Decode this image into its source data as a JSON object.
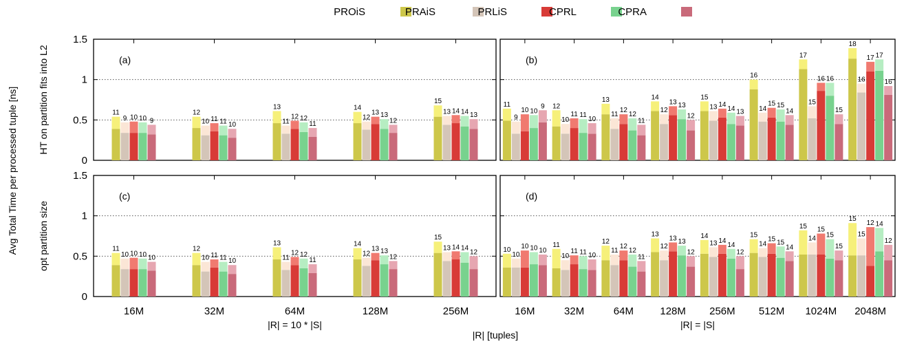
{
  "chart_data": {
    "type": "bar",
    "stacked": true,
    "ylabel_outer": "Avg Total Time per processed tuple [ns]",
    "xlabel_common": "|R| [tuples]",
    "legend_position": "top",
    "legend": [
      "PROiS",
      "PRAiS",
      "PRLiS",
      "CPRL",
      "CPRA"
    ],
    "series_colors": {
      "PROiS": {
        "base": "#cdc74a",
        "top": "#f6f07a"
      },
      "PRAiS": {
        "base": "#d4c5b8",
        "top": "#fbe6d6"
      },
      "PRLiS": {
        "base": "#d83b37",
        "top": "#f07a70"
      },
      "CPRL": {
        "base": "#78d28e",
        "top": "#b6edc2"
      },
      "CPRA": {
        "base": "#c96a7a",
        "top": "#e6a6b1"
      }
    },
    "rows": [
      {
        "ylabel": "HT on partition fits into L2"
      },
      {
        "ylabel": "opt partition size"
      }
    ],
    "columns": [
      {
        "xlabel": "|R| = 10 * |S|",
        "categories": [
          "16M",
          "32M",
          "64M",
          "128M",
          "256M"
        ]
      },
      {
        "xlabel": "|R| = |S|",
        "categories": [
          "16M",
          "32M",
          "64M",
          "128M",
          "256M",
          "512M",
          "1024M",
          "2048M"
        ]
      }
    ],
    "ylim": [
      0,
      1.5
    ],
    "yticks": [
      0,
      0.5,
      1,
      1.5
    ],
    "ytick_labels": [
      "0",
      "0.5",
      "1",
      "1.5"
    ],
    "grid_values": [
      0.5,
      1
    ],
    "panels": [
      {
        "label": "(a)",
        "bars": [
          [
            {
              "base": 0.39,
              "total": 0.54,
              "label": "11"
            },
            {
              "base": 0.34,
              "total": 0.47,
              "label": "9"
            },
            {
              "base": 0.34,
              "total": 0.48,
              "label": "10"
            },
            {
              "base": 0.34,
              "total": 0.47,
              "label": "10"
            },
            {
              "base": 0.32,
              "total": 0.44,
              "label": "9"
            }
          ],
          [
            {
              "base": 0.4,
              "total": 0.54,
              "label": "12"
            },
            {
              "base": 0.31,
              "total": 0.43,
              "label": "10"
            },
            {
              "base": 0.36,
              "total": 0.46,
              "label": "11"
            },
            {
              "base": 0.31,
              "total": 0.43,
              "label": "11"
            },
            {
              "base": 0.28,
              "total": 0.39,
              "label": "10"
            }
          ],
          [
            {
              "base": 0.46,
              "total": 0.61,
              "label": "13"
            },
            {
              "base": 0.33,
              "total": 0.43,
              "label": "11"
            },
            {
              "base": 0.39,
              "total": 0.49,
              "label": "12"
            },
            {
              "base": 0.35,
              "total": 0.47,
              "label": "12"
            },
            {
              "base": 0.29,
              "total": 0.4,
              "label": "11"
            }
          ],
          [
            {
              "base": 0.46,
              "total": 0.6,
              "label": "14"
            },
            {
              "base": 0.38,
              "total": 0.48,
              "label": "12"
            },
            {
              "base": 0.45,
              "total": 0.54,
              "label": "13"
            },
            {
              "base": 0.39,
              "total": 0.51,
              "label": "13"
            },
            {
              "base": 0.34,
              "total": 0.44,
              "label": "12"
            }
          ],
          [
            {
              "base": 0.54,
              "total": 0.68,
              "label": "15"
            },
            {
              "base": 0.44,
              "total": 0.55,
              "label": "13"
            },
            {
              "base": 0.46,
              "total": 0.56,
              "label": "14"
            },
            {
              "base": 0.42,
              "total": 0.55,
              "label": "14"
            },
            {
              "base": 0.39,
              "total": 0.51,
              "label": "13"
            }
          ]
        ]
      },
      {
        "label": "(b)",
        "bars": [
          [
            {
              "base": 0.49,
              "total": 0.64,
              "label": "11"
            },
            {
              "base": 0.33,
              "total": 0.48,
              "label": "9"
            },
            {
              "base": 0.36,
              "total": 0.57,
              "label": "10"
            },
            {
              "base": 0.4,
              "total": 0.56,
              "label": "10"
            },
            {
              "base": 0.47,
              "total": 0.62,
              "label": "9"
            }
          ],
          [
            {
              "base": 0.42,
              "total": 0.62,
              "label": "12"
            },
            {
              "base": 0.33,
              "total": 0.45,
              "label": "10"
            },
            {
              "base": 0.4,
              "total": 0.52,
              "label": "11"
            },
            {
              "base": 0.34,
              "total": 0.51,
              "label": "11"
            },
            {
              "base": 0.33,
              "total": 0.46,
              "label": "10"
            }
          ],
          [
            {
              "base": 0.57,
              "total": 0.7,
              "label": "13"
            },
            {
              "base": 0.39,
              "total": 0.52,
              "label": "11"
            },
            {
              "base": 0.45,
              "total": 0.57,
              "label": "12"
            },
            {
              "base": 0.37,
              "total": 0.52,
              "label": "12"
            },
            {
              "base": 0.31,
              "total": 0.44,
              "label": "11"
            }
          ],
          [
            {
              "base": 0.61,
              "total": 0.73,
              "label": "14"
            },
            {
              "base": 0.45,
              "total": 0.57,
              "label": "12"
            },
            {
              "base": 0.56,
              "total": 0.67,
              "label": "13"
            },
            {
              "base": 0.51,
              "total": 0.63,
              "label": "13"
            },
            {
              "base": 0.37,
              "total": 0.5,
              "label": "12"
            }
          ],
          [
            {
              "base": 0.61,
              "total": 0.73,
              "label": "15"
            },
            {
              "base": 0.49,
              "total": 0.61,
              "label": "13"
            },
            {
              "base": 0.53,
              "total": 0.64,
              "label": "14"
            },
            {
              "base": 0.45,
              "total": 0.59,
              "label": "14"
            },
            {
              "base": 0.43,
              "total": 0.55,
              "label": "13"
            }
          ],
          [
            {
              "base": 0.88,
              "total": 1.0,
              "label": "16"
            },
            {
              "base": 0.48,
              "total": 0.59,
              "label": "14"
            },
            {
              "base": 0.53,
              "total": 0.65,
              "label": "15"
            },
            {
              "base": 0.48,
              "total": 0.63,
              "label": "15"
            },
            {
              "base": 0.44,
              "total": 0.56,
              "label": "14"
            }
          ],
          [
            {
              "base": 1.13,
              "total": 1.25,
              "label": "17"
            },
            {
              "base": 0.52,
              "total": 0.67,
              "label": "15"
            },
            {
              "base": 0.86,
              "total": 0.96,
              "label": "16"
            },
            {
              "base": 0.8,
              "total": 0.96,
              "label": "16"
            },
            {
              "base": 0.45,
              "total": 0.57,
              "label": "15"
            }
          ],
          [
            {
              "base": 1.26,
              "total": 1.39,
              "label": "18"
            },
            {
              "base": 0.84,
              "total": 0.95,
              "label": "16"
            },
            {
              "base": 1.1,
              "total": 1.22,
              "label": "17"
            },
            {
              "base": 1.11,
              "total": 1.25,
              "label": "17"
            },
            {
              "base": 0.81,
              "total": 0.92,
              "label": "16"
            }
          ]
        ]
      },
      {
        "label": "(c)",
        "bars": [
          [
            {
              "base": 0.39,
              "total": 0.54,
              "label": "11"
            },
            {
              "base": 0.34,
              "total": 0.47,
              "label": "10"
            },
            {
              "base": 0.34,
              "total": 0.48,
              "label": "10"
            },
            {
              "base": 0.34,
              "total": 0.47,
              "label": "10"
            },
            {
              "base": 0.32,
              "total": 0.43,
              "label": "10"
            }
          ],
          [
            {
              "base": 0.39,
              "total": 0.54,
              "label": "12"
            },
            {
              "base": 0.31,
              "total": 0.43,
              "label": "10"
            },
            {
              "base": 0.36,
              "total": 0.46,
              "label": "11"
            },
            {
              "base": 0.31,
              "total": 0.43,
              "label": "11"
            },
            {
              "base": 0.28,
              "total": 0.39,
              "label": "10"
            }
          ],
          [
            {
              "base": 0.46,
              "total": 0.61,
              "label": "13"
            },
            {
              "base": 0.33,
              "total": 0.43,
              "label": "11"
            },
            {
              "base": 0.39,
              "total": 0.49,
              "label": "12"
            },
            {
              "base": 0.35,
              "total": 0.47,
              "label": "12"
            },
            {
              "base": 0.29,
              "total": 0.4,
              "label": "11"
            }
          ],
          [
            {
              "base": 0.46,
              "total": 0.6,
              "label": "14"
            },
            {
              "base": 0.38,
              "total": 0.48,
              "label": "12"
            },
            {
              "base": 0.45,
              "total": 0.54,
              "label": "13"
            },
            {
              "base": 0.4,
              "total": 0.51,
              "label": "13"
            },
            {
              "base": 0.34,
              "total": 0.44,
              "label": "12"
            }
          ],
          [
            {
              "base": 0.54,
              "total": 0.68,
              "label": "15"
            },
            {
              "base": 0.44,
              "total": 0.55,
              "label": "13"
            },
            {
              "base": 0.46,
              "total": 0.56,
              "label": "14"
            },
            {
              "base": 0.42,
              "total": 0.55,
              "label": "14"
            },
            {
              "base": 0.34,
              "total": 0.5,
              "label": "12"
            }
          ]
        ]
      },
      {
        "label": "(d)",
        "bars": [
          [
            {
              "base": 0.36,
              "total": 0.53,
              "label": "10"
            },
            {
              "base": 0.36,
              "total": 0.47,
              "label": "10"
            },
            {
              "base": 0.36,
              "total": 0.57,
              "label": "10"
            },
            {
              "base": 0.4,
              "total": 0.55,
              "label": "10"
            },
            {
              "base": 0.39,
              "total": 0.52,
              "label": "10"
            }
          ],
          [
            {
              "base": 0.35,
              "total": 0.59,
              "label": "11"
            },
            {
              "base": 0.33,
              "total": 0.45,
              "label": "10"
            },
            {
              "base": 0.4,
              "total": 0.51,
              "label": "11"
            },
            {
              "base": 0.34,
              "total": 0.5,
              "label": "11"
            },
            {
              "base": 0.33,
              "total": 0.46,
              "label": "10"
            }
          ],
          [
            {
              "base": 0.45,
              "total": 0.63,
              "label": "12"
            },
            {
              "base": 0.39,
              "total": 0.52,
              "label": "11"
            },
            {
              "base": 0.45,
              "total": 0.57,
              "label": "12"
            },
            {
              "base": 0.37,
              "total": 0.52,
              "label": "12"
            },
            {
              "base": 0.31,
              "total": 0.44,
              "label": "11"
            }
          ],
          [
            {
              "base": 0.55,
              "total": 0.72,
              "label": "13"
            },
            {
              "base": 0.45,
              "total": 0.57,
              "label": "12"
            },
            {
              "base": 0.56,
              "total": 0.67,
              "label": "13"
            },
            {
              "base": 0.51,
              "total": 0.63,
              "label": "13"
            },
            {
              "base": 0.37,
              "total": 0.5,
              "label": "12"
            }
          ],
          [
            {
              "base": 0.53,
              "total": 0.7,
              "label": "14"
            },
            {
              "base": 0.49,
              "total": 0.61,
              "label": "13"
            },
            {
              "base": 0.53,
              "total": 0.64,
              "label": "14"
            },
            {
              "base": 0.47,
              "total": 0.59,
              "label": "14"
            },
            {
              "base": 0.34,
              "total": 0.5,
              "label": "12"
            }
          ],
          [
            {
              "base": 0.54,
              "total": 0.71,
              "label": "15"
            },
            {
              "base": 0.49,
              "total": 0.6,
              "label": "14"
            },
            {
              "base": 0.53,
              "total": 0.66,
              "label": "15"
            },
            {
              "base": 0.48,
              "total": 0.62,
              "label": "15"
            },
            {
              "base": 0.44,
              "total": 0.56,
              "label": "14"
            }
          ],
          [
            {
              "base": 0.52,
              "total": 0.82,
              "label": "15"
            },
            {
              "base": 0.52,
              "total": 0.67,
              "label": "14"
            },
            {
              "base": 0.52,
              "total": 0.78,
              "label": "15"
            },
            {
              "base": 0.47,
              "total": 0.71,
              "label": "15"
            },
            {
              "base": 0.45,
              "total": 0.57,
              "label": "15"
            }
          ],
          [
            {
              "base": 0.51,
              "total": 0.91,
              "label": "15"
            },
            {
              "base": 0.51,
              "total": 0.72,
              "label": "15"
            },
            {
              "base": 0.38,
              "total": 0.86,
              "label": "12"
            },
            {
              "base": 0.56,
              "total": 0.85,
              "label": "14"
            },
            {
              "base": 0.45,
              "total": 0.64,
              "label": "12"
            }
          ]
        ]
      }
    ]
  }
}
